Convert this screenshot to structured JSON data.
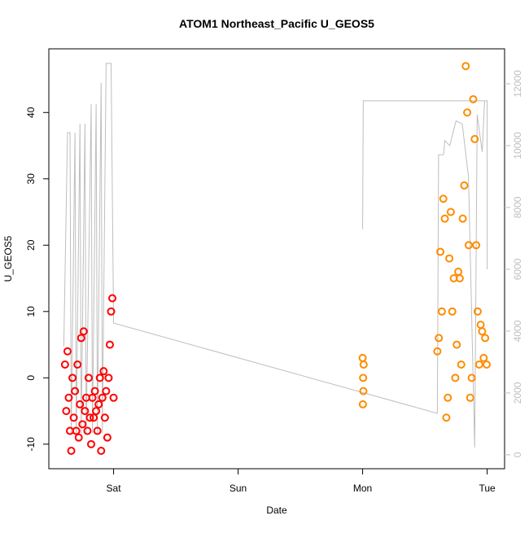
{
  "chart_data": {
    "type": "scatter",
    "title": "ATOM1 Northeast_Pacific U_GEOS5",
    "xlabel": "Date",
    "ylabel": "U_GEOS5",
    "xlim": [
      -0.52,
      3.14
    ],
    "xticks": [
      {
        "value": 0,
        "label": "Sat"
      },
      {
        "value": 1,
        "label": "Sun"
      },
      {
        "value": 2,
        "label": "Mon"
      },
      {
        "value": 3,
        "label": "Tue"
      }
    ],
    "ylim": [
      -13.7,
      49.6
    ],
    "yticks": [
      -10,
      0,
      10,
      20,
      30,
      40
    ],
    "y2lim": [
      -450,
      13130
    ],
    "y2ticks": [
      0,
      2000,
      4000,
      6000,
      8000,
      10000,
      12000
    ],
    "y2_color": "#bebebe",
    "series": [
      {
        "type": "line",
        "axis": "y2",
        "color": "#bebebe",
        "x": [
          -0.4,
          -0.37,
          -0.35,
          -0.34,
          -0.31,
          -0.3,
          -0.27,
          -0.26,
          -0.23,
          -0.22,
          -0.18,
          -0.17,
          -0.14,
          -0.13,
          -0.1,
          -0.09,
          -0.06,
          -0.02,
          0.0,
          2.6,
          2.61,
          2.65,
          2.66,
          2.7,
          2.75,
          2.8,
          2.85,
          2.9,
          2.92,
          2.96,
          2.98,
          3.0,
          3.0,
          2.0,
          2.0,
          2.005,
          3.0
        ],
        "values": [
          3500,
          10420,
          10420,
          700,
          10420,
          700,
          10710,
          700,
          10710,
          700,
          11340,
          700,
          11340,
          700,
          12030,
          700,
          12660,
          12660,
          4260,
          1340,
          9700,
          9710,
          10160,
          10000,
          10800,
          10700,
          9000,
          237,
          11000,
          9800,
          11450,
          11450,
          6000,
          null,
          7300,
          11450,
          11450
        ]
      },
      {
        "type": "scatter",
        "color": "#ff0000",
        "x": [
          -0.39,
          -0.38,
          -0.37,
          -0.36,
          -0.35,
          -0.34,
          -0.33,
          -0.32,
          -0.31,
          -0.3,
          -0.29,
          -0.28,
          -0.27,
          -0.26,
          -0.25,
          -0.24,
          -0.23,
          -0.22,
          -0.21,
          -0.2,
          -0.19,
          -0.18,
          -0.17,
          -0.16,
          -0.15,
          -0.14,
          -0.13,
          -0.12,
          -0.11,
          -0.1,
          -0.09,
          -0.08,
          -0.07,
          -0.06,
          -0.05,
          -0.04,
          -0.03,
          -0.02,
          -0.01,
          0.0
        ],
        "values": [
          2,
          -5,
          4,
          -3,
          -8,
          -11,
          0,
          -6,
          -2,
          -8,
          2,
          -9,
          -4,
          6,
          -7,
          7,
          -5,
          -3,
          -8,
          0,
          -6,
          -10,
          -3,
          -6,
          -2,
          -5,
          -8,
          -4,
          0,
          -11,
          -3,
          1,
          -6,
          -2,
          -9,
          0,
          5,
          10,
          12,
          -3
        ]
      },
      {
        "type": "scatter",
        "color": "#ff8c00",
        "x": [
          2.0,
          2.002,
          2.004,
          2.006,
          2.008,
          2.6,
          2.612,
          2.624,
          2.636,
          2.648,
          2.66,
          2.672,
          2.684,
          2.696,
          2.708,
          2.72,
          2.732,
          2.744,
          2.756,
          2.768,
          2.78,
          2.792,
          2.804,
          2.816,
          2.828,
          2.84,
          2.852,
          2.864,
          2.876,
          2.888,
          2.9,
          2.912,
          2.924,
          2.936,
          2.948,
          2.96,
          2.972,
          2.984,
          2.996
        ],
        "values": [
          3,
          -4,
          0,
          -2,
          2,
          4,
          6,
          19,
          10,
          27,
          24,
          -6,
          -3,
          18,
          25,
          10,
          15,
          0,
          5,
          16,
          15,
          2,
          24,
          29,
          47,
          40,
          20,
          -3,
          0,
          42,
          36,
          20,
          10,
          2,
          8,
          7,
          3,
          6,
          2
        ]
      }
    ]
  }
}
